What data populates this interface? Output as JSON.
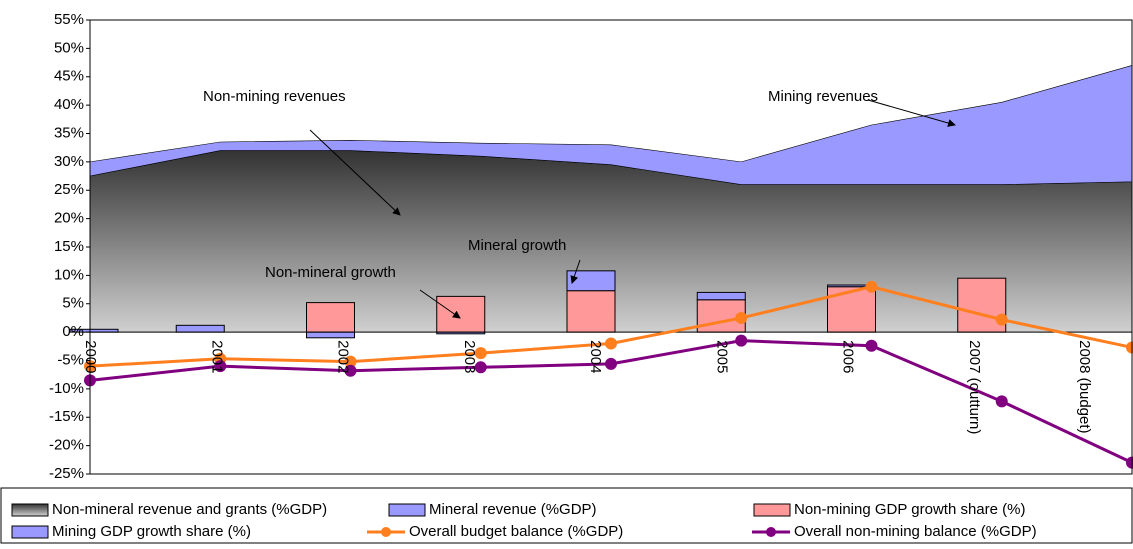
{
  "chart_data": {
    "type": "combo",
    "categories": [
      "2000",
      "2001",
      "2002",
      "2003",
      "2004",
      "2005",
      "2006",
      "2007 (outturn)",
      "2008 (budget)"
    ],
    "ylim": [
      -25,
      55
    ],
    "yticks": [
      {
        "value": -25,
        "label": "-25%"
      },
      {
        "value": -20,
        "label": "-20%"
      },
      {
        "value": -15,
        "label": "-15%"
      },
      {
        "value": -10,
        "label": "-10%"
      },
      {
        "value": -5,
        "label": "-5%"
      },
      {
        "value": 0,
        "label": "0%"
      },
      {
        "value": 5,
        "label": "5%"
      },
      {
        "value": 10,
        "label": "10%"
      },
      {
        "value": 15,
        "label": "15%"
      },
      {
        "value": 20,
        "label": "20%"
      },
      {
        "value": 25,
        "label": "25%"
      },
      {
        "value": 30,
        "label": "30%"
      },
      {
        "value": 35,
        "label": "35%"
      },
      {
        "value": 40,
        "label": "40%"
      },
      {
        "value": 45,
        "label": "45%"
      },
      {
        "value": 50,
        "label": "50%"
      },
      {
        "value": 55,
        "label": "55%"
      }
    ],
    "grid": false,
    "series": [
      {
        "name": "Non-mineral revenue and grants (%GDP)",
        "type": "area",
        "color": "#555555",
        "values": [
          27.5,
          32,
          32,
          31,
          29.5,
          26,
          26,
          26,
          26.5
        ]
      },
      {
        "name": "Mineral revenue (%GDP)",
        "type": "area",
        "color": "#9999ff",
        "values": [
          2.5,
          1.5,
          1.8,
          2.3,
          3.5,
          4,
          10.5,
          14.5,
          20.5
        ]
      },
      {
        "name": "Non-mining GDP growth share (%)",
        "type": "bar",
        "color": "#ff9999",
        "values": [
          0,
          0,
          5.2,
          6.3,
          7.3,
          5.7,
          8,
          9.5,
          null
        ]
      },
      {
        "name": "Mining GDP growth share (%)",
        "type": "bar",
        "color": "#9999ff",
        "values": [
          0.5,
          1.2,
          -1,
          -0.3,
          3.5,
          1.3,
          0.3,
          0,
          null
        ]
      },
      {
        "name": "Overall budget balance (%GDP)",
        "type": "line",
        "color": "#ff7f1f",
        "values": [
          -6,
          -4.7,
          -5.2,
          -3.7,
          -2,
          2.5,
          8,
          2.2,
          -2.7
        ]
      },
      {
        "name": "Overall non-mining balance (%GDP)",
        "type": "line",
        "color": "#800080",
        "values": [
          -8.5,
          -6,
          -6.8,
          -6.2,
          -5.6,
          -1.5,
          -2.4,
          -12.2,
          -23
        ]
      }
    ],
    "annotations": [
      "Non-mining revenues",
      "Mining revenues",
      "Mineral growth",
      "Non-mineral growth"
    ]
  }
}
